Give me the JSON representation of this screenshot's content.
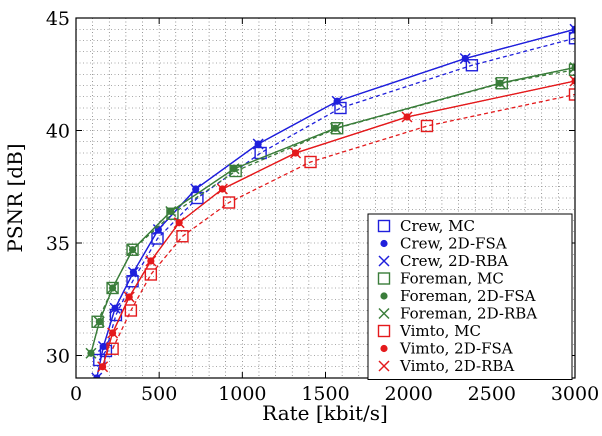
{
  "chart_data": {
    "type": "line",
    "title": "",
    "xlabel": "Rate [kbit/s]",
    "ylabel": "PSNR [dB]",
    "xlim": [
      0,
      3000
    ],
    "ylim": [
      29,
      45
    ],
    "xticks": [
      0,
      500,
      1000,
      1500,
      2000,
      2500,
      3000
    ],
    "yticks": [
      30,
      35,
      40,
      45
    ],
    "xtick_labels": [
      "0",
      "500",
      "1000",
      "1500",
      "2000",
      "2500",
      "3000"
    ],
    "ytick_labels": [
      "30",
      "35",
      "40",
      "45"
    ],
    "grid": "dotted major and minor grid",
    "legend_position": "lower-right",
    "series": [
      {
        "name": "Crew, MC",
        "color": "#1f1fdc",
        "marker": "square",
        "line": "dashed",
        "x": [
          140,
          180,
          240,
          340,
          490,
          730,
          1110,
          1590,
          2380,
          3000
        ],
        "y": [
          29.8,
          30.2,
          31.8,
          33.3,
          35.2,
          37.0,
          39.0,
          41.0,
          42.9,
          44.1
        ]
      },
      {
        "name": "Crew, 2D-FSA",
        "color": "#1f1fdc",
        "marker": "dot",
        "line": "solid",
        "x": [
          125,
          165,
          235,
          345,
          495,
          720,
          1095,
          1570,
          2340,
          3000
        ],
        "y": [
          29.0,
          30.4,
          32.1,
          33.7,
          35.6,
          37.4,
          39.4,
          41.3,
          43.2,
          44.5
        ]
      },
      {
        "name": "Crew, 2D-RBA",
        "color": "#1f1fdc",
        "marker": "x",
        "line": "solid",
        "x": [
          125,
          165,
          235,
          345,
          495,
          720,
          1095,
          1570,
          2340,
          3000
        ],
        "y": [
          29.0,
          30.4,
          32.1,
          33.7,
          35.6,
          37.4,
          39.4,
          41.3,
          43.2,
          44.5
        ]
      },
      {
        "name": "Foreman, MC",
        "color": "#3a7d3a",
        "marker": "square",
        "line": "dashed",
        "x": [
          130,
          220,
          340,
          580,
          960,
          1570,
          2560,
          3000
        ],
        "y": [
          31.5,
          33.0,
          34.7,
          36.3,
          38.2,
          40.1,
          42.1,
          42.7
        ]
      },
      {
        "name": "Foreman, 2D-FSA",
        "color": "#3a7d3a",
        "marker": "dot",
        "line": "solid",
        "x": [
          90,
          140,
          220,
          340,
          570,
          950,
          1560,
          2550,
          3000
        ],
        "y": [
          30.1,
          31.5,
          33.0,
          34.7,
          36.4,
          38.3,
          40.1,
          42.1,
          42.8
        ]
      },
      {
        "name": "Foreman, 2D-RBA",
        "color": "#3a7d3a",
        "marker": "x",
        "line": "solid",
        "x": [
          90,
          140,
          220,
          340,
          570,
          950,
          1560,
          2550,
          3000
        ],
        "y": [
          30.1,
          31.5,
          33.0,
          34.7,
          36.4,
          38.3,
          40.1,
          42.1,
          42.8
        ]
      },
      {
        "name": "Vimto, MC",
        "color": "#e41a1c",
        "marker": "square",
        "line": "dashed",
        "x": [
          220,
          330,
          450,
          640,
          920,
          1410,
          2110,
          3000
        ],
        "y": [
          30.3,
          32.0,
          33.6,
          35.3,
          36.8,
          38.6,
          40.2,
          41.6
        ]
      },
      {
        "name": "Vimto, 2D-FSA",
        "color": "#e41a1c",
        "marker": "dot",
        "line": "solid",
        "x": [
          160,
          220,
          320,
          450,
          620,
          880,
          1320,
          1990,
          3000
        ],
        "y": [
          29.5,
          31.0,
          32.6,
          34.2,
          35.9,
          37.4,
          39.0,
          40.6,
          42.2
        ]
      },
      {
        "name": "Vimto, 2D-RBA",
        "color": "#e41a1c",
        "marker": "x",
        "line": "solid",
        "x": [
          160,
          220,
          320,
          450,
          620,
          880,
          1320,
          1990,
          3000
        ],
        "y": [
          29.5,
          31.0,
          32.6,
          34.2,
          35.9,
          37.4,
          39.0,
          40.6,
          42.2
        ]
      }
    ]
  }
}
